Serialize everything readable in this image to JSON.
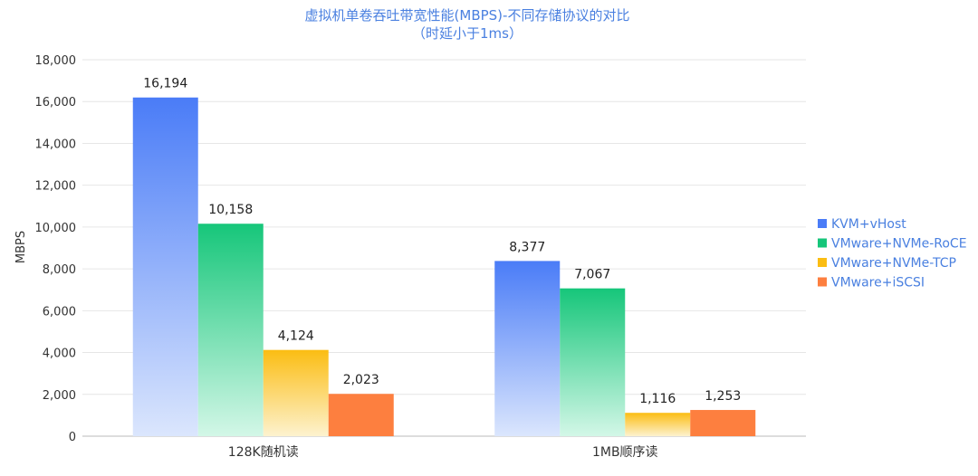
{
  "chart_data": {
    "type": "bar",
    "title": "虚拟机单卷吞吐带宽性能(MBPS)-不同存储协议的对比",
    "subtitle": "（时延小于1ms）",
    "xlabel": "",
    "ylabel": "MBPS",
    "ylim": [
      0,
      18000
    ],
    "yticks": [
      "0",
      "2,000",
      "4,000",
      "6,000",
      "8,000",
      "10,000",
      "12,000",
      "14,000",
      "16,000",
      "18,000"
    ],
    "grid": true,
    "legend_position": "right",
    "categories": [
      "128K随机读",
      "1MB顺序读"
    ],
    "series": [
      {
        "name": "KVM+vHost",
        "color": "#4a7cf7",
        "color_light": "#dbe6fd",
        "values": [
          16194,
          8377
        ],
        "labels": [
          "16,194",
          "8,377"
        ]
      },
      {
        "name": "VMware+NVMe-RoCE",
        "color": "#16c67a",
        "color_light": "#d3f7e7",
        "values": [
          10158,
          7067
        ],
        "labels": [
          "10,158",
          "7,067"
        ]
      },
      {
        "name": "VMware+NVMe-TCP",
        "color": "#fbbd13",
        "color_light": "#fdf2cf",
        "values": [
          4124,
          1116
        ],
        "labels": [
          "4,124",
          "1,116"
        ]
      },
      {
        "name": "VMware+iSCSI",
        "color": "#fd7f3f",
        "color_light": "#fd7f3f",
        "values": [
          2023,
          1253
        ],
        "labels": [
          "2,023",
          "1,253"
        ]
      }
    ]
  }
}
